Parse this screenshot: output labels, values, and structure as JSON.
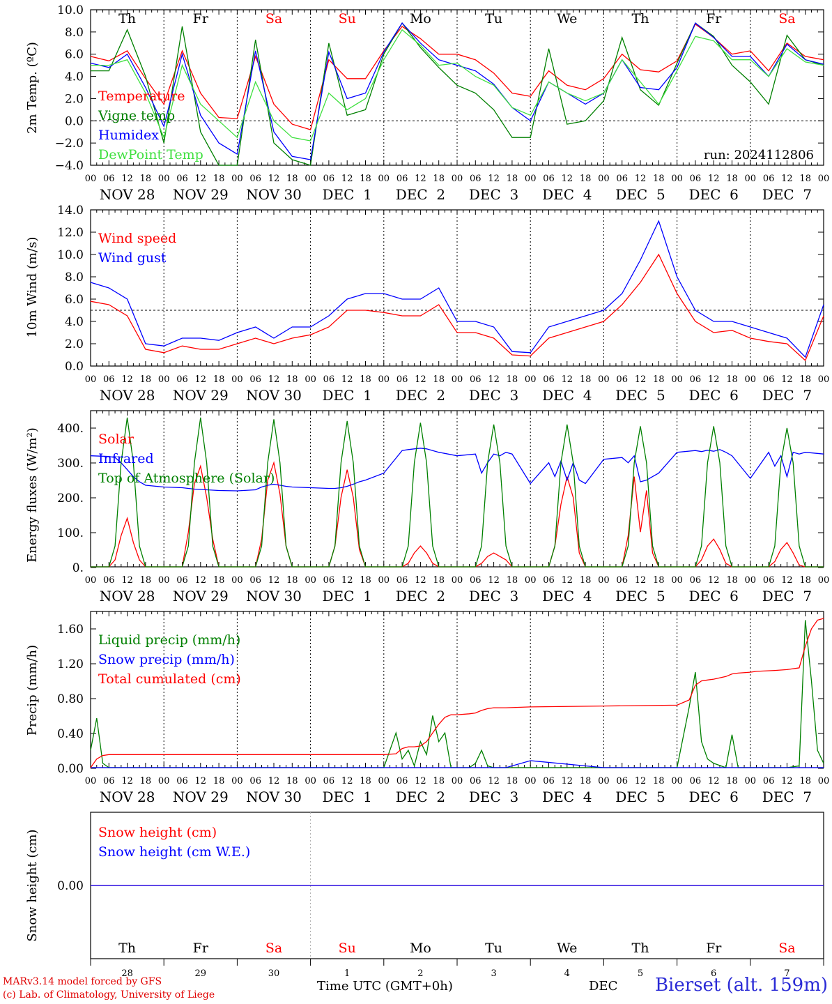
{
  "chart_data": [
    {
      "type": "line",
      "ylabel": "2m Temp. (ºC)",
      "ylim": [
        -4,
        10
      ],
      "yticks": [
        "10.0",
        "8.0",
        "6.0",
        "4.0",
        "2.0",
        "0.0",
        "−2.0",
        "−4.0"
      ],
      "reference_line": 0,
      "annotation": "run: 2024112806",
      "x": [
        0,
        6,
        12,
        18,
        24,
        30,
        36,
        42,
        48,
        54,
        60,
        66,
        72,
        78,
        84,
        90,
        96,
        102,
        108,
        114,
        120,
        126,
        132,
        138,
        144,
        150,
        156,
        162,
        168,
        174,
        180,
        186,
        192,
        198,
        204,
        210,
        216,
        222,
        228,
        234,
        240
      ],
      "series": [
        {
          "name": "Temperature",
          "color": "#ff0000",
          "values": [
            5.8,
            5.4,
            6.3,
            3.8,
            1.5,
            6.3,
            2.5,
            0.3,
            0.2,
            5.8,
            1.5,
            -0.3,
            -0.8,
            5.5,
            3.8,
            3.8,
            6.3,
            8.5,
            7.4,
            6.0,
            6.0,
            5.5,
            4.3,
            2.5,
            2.2,
            4.5,
            3.2,
            2.8,
            3.8,
            6.0,
            4.6,
            4.4,
            5.4,
            8.7,
            7.5,
            6.0,
            6.3,
            4.5,
            7.0,
            5.8,
            5.5
          ]
        },
        {
          "name": "Vigne temp",
          "color": "#008000",
          "values": [
            4.5,
            4.5,
            8.2,
            4.0,
            -2.0,
            8.5,
            -1.0,
            -4.0,
            -4.0,
            7.3,
            -2.0,
            -3.5,
            -4.0,
            7.0,
            0.5,
            1.0,
            6.0,
            8.8,
            6.6,
            4.8,
            3.2,
            2.5,
            1.0,
            -1.5,
            -1.5,
            6.5,
            -0.3,
            0.0,
            1.8,
            7.5,
            2.8,
            1.4,
            5.2,
            8.8,
            7.6,
            5.0,
            3.5,
            1.5,
            7.7,
            5.5,
            5.0
          ]
        },
        {
          "name": "Humidex",
          "color": "#0000ff",
          "values": [
            5.2,
            4.8,
            6.0,
            3.0,
            -0.5,
            6.0,
            0.5,
            -2.0,
            -3.0,
            6.3,
            -1.0,
            -3.2,
            -3.5,
            6.2,
            2.0,
            2.5,
            6.2,
            8.8,
            7.0,
            5.5,
            5.0,
            4.5,
            3.3,
            1.2,
            0.0,
            3.5,
            2.5,
            1.5,
            2.5,
            5.5,
            3.0,
            2.8,
            4.8,
            8.8,
            7.5,
            5.8,
            5.8,
            4.0,
            6.9,
            5.5,
            5.1
          ]
        },
        {
          "name": "DewPoint Temp",
          "color": "#40e040",
          "values": [
            5.0,
            5.0,
            5.5,
            2.5,
            -1.5,
            5.0,
            1.5,
            0.0,
            -1.5,
            3.5,
            0.0,
            -1.5,
            -1.8,
            2.5,
            1.0,
            2.0,
            5.5,
            8.2,
            6.8,
            5.0,
            5.2,
            4.0,
            3.2,
            1.2,
            0.5,
            3.5,
            2.5,
            1.8,
            2.5,
            5.5,
            3.5,
            1.5,
            4.5,
            7.6,
            7.2,
            5.5,
            5.5,
            4.0,
            6.5,
            5.3,
            5.0
          ]
        }
      ]
    },
    {
      "type": "line",
      "ylabel": "10m Wind (m/s)",
      "ylim": [
        0,
        14
      ],
      "yticks": [
        "14.0",
        "12.0",
        "10.0",
        "8.0",
        "6.0",
        "4.0",
        "2.0",
        "0.0"
      ],
      "reference_line": 5,
      "x": [
        0,
        6,
        12,
        18,
        24,
        30,
        36,
        42,
        48,
        54,
        60,
        66,
        72,
        78,
        84,
        90,
        96,
        102,
        108,
        114,
        120,
        126,
        132,
        138,
        144,
        150,
        156,
        162,
        168,
        174,
        180,
        186,
        192,
        198,
        204,
        210,
        216,
        222,
        228,
        234,
        240
      ],
      "series": [
        {
          "name": "Wind speed",
          "color": "#ff0000",
          "values": [
            5.8,
            5.5,
            4.5,
            1.5,
            1.2,
            1.8,
            1.5,
            1.5,
            2.0,
            2.5,
            2.0,
            2.5,
            2.8,
            3.5,
            5.0,
            5.0,
            4.8,
            4.5,
            4.5,
            5.5,
            3.0,
            3.0,
            2.5,
            1.0,
            0.9,
            2.5,
            3.0,
            3.5,
            4.0,
            5.5,
            7.5,
            10.0,
            6.5,
            4.0,
            3.0,
            3.2,
            2.5,
            2.2,
            2.0,
            0.5,
            4.5
          ]
        },
        {
          "name": "Wind gust",
          "color": "#0000ff",
          "values": [
            7.5,
            7.0,
            6.0,
            2.0,
            1.8,
            2.5,
            2.5,
            2.3,
            3.0,
            3.5,
            2.5,
            3.5,
            3.5,
            4.5,
            6.0,
            6.5,
            6.5,
            6.0,
            6.0,
            7.0,
            4.0,
            4.0,
            3.5,
            1.3,
            1.2,
            3.5,
            4.0,
            4.5,
            5.0,
            6.5,
            9.5,
            13.0,
            8.0,
            5.0,
            4.0,
            4.0,
            3.5,
            3.0,
            2.5,
            0.8,
            5.5
          ]
        }
      ]
    },
    {
      "type": "line",
      "ylabel": "Energy fluxes (W/m²)",
      "ylim": [
        0,
        450
      ],
      "yticks": [
        "400.",
        "300.",
        "200.",
        "100.",
        "0."
      ],
      "x": [
        0,
        6,
        8,
        10,
        12,
        14,
        16,
        18,
        24,
        30,
        32,
        34,
        36,
        38,
        40,
        42,
        48,
        54,
        56,
        58,
        60,
        62,
        64,
        66,
        72,
        78,
        80,
        82,
        84,
        86,
        88,
        90,
        96,
        102,
        104,
        106,
        108,
        110,
        112,
        114,
        120,
        126,
        128,
        130,
        132,
        134,
        136,
        138,
        144,
        150,
        152,
        154,
        156,
        158,
        160,
        162,
        168,
        174,
        176,
        178,
        180,
        182,
        184,
        186,
        192,
        198,
        200,
        202,
        204,
        206,
        208,
        210,
        216,
        222,
        224,
        226,
        228,
        230,
        232,
        234,
        240
      ],
      "series": [
        {
          "name": "Solar",
          "color": "#ff0000",
          "values": [
            0,
            0,
            20,
            90,
            140,
            70,
            20,
            0,
            0,
            0,
            100,
            240,
            290,
            200,
            80,
            0,
            0,
            0,
            80,
            250,
            300,
            210,
            60,
            0,
            0,
            0,
            60,
            200,
            280,
            200,
            50,
            0,
            0,
            0,
            10,
            40,
            60,
            40,
            10,
            0,
            0,
            0,
            10,
            30,
            40,
            30,
            20,
            0,
            0,
            0,
            60,
            180,
            260,
            200,
            40,
            0,
            0,
            0,
            90,
            260,
            100,
            220,
            40,
            0,
            0,
            0,
            20,
            60,
            80,
            50,
            10,
            0,
            0,
            0,
            15,
            50,
            70,
            40,
            5,
            0,
            0
          ]
        },
        {
          "name": "Infrared",
          "color": "#0000ff",
          "values": [
            320,
            318,
            315,
            300,
            280,
            260,
            245,
            235,
            230,
            228,
            226,
            224,
            223,
            222,
            221,
            220,
            219,
            222,
            230,
            235,
            238,
            235,
            232,
            230,
            228,
            226,
            226,
            228,
            232,
            238,
            245,
            250,
            270,
            335,
            338,
            340,
            342,
            340,
            335,
            330,
            320,
            325,
            270,
            300,
            325,
            320,
            330,
            325,
            240,
            300,
            260,
            305,
            250,
            300,
            250,
            240,
            310,
            315,
            300,
            320,
            245,
            250,
            260,
            270,
            330,
            335,
            332,
            336,
            333,
            338,
            330,
            320,
            255,
            330,
            290,
            320,
            260,
            330,
            325,
            330,
            325
          ]
        },
        {
          "name": "Top of Atmosphere (Solar)",
          "color": "#008000",
          "values": [
            0,
            0,
            60,
            300,
            430,
            300,
            60,
            0,
            0,
            0,
            60,
            300,
            430,
            300,
            60,
            0,
            0,
            0,
            60,
            300,
            425,
            300,
            60,
            0,
            0,
            0,
            60,
            300,
            420,
            300,
            60,
            0,
            0,
            0,
            60,
            300,
            415,
            300,
            60,
            0,
            0,
            0,
            60,
            300,
            410,
            300,
            60,
            0,
            0,
            0,
            60,
            300,
            410,
            300,
            60,
            0,
            0,
            0,
            60,
            300,
            405,
            300,
            60,
            0,
            0,
            0,
            60,
            300,
            405,
            300,
            60,
            0,
            0,
            0,
            60,
            300,
            400,
            300,
            60,
            0,
            0
          ]
        }
      ]
    },
    {
      "type": "line",
      "ylabel": "Precip (mm/h)",
      "ylim": [
        0,
        1.8
      ],
      "yticks": [
        "1.60",
        "1.20",
        "0.80",
        "0.40",
        "0.00"
      ],
      "x": [
        0,
        2,
        4,
        6,
        12,
        24,
        48,
        72,
        96,
        100,
        102,
        104,
        106,
        108,
        110,
        112,
        114,
        116,
        118,
        120,
        124,
        126,
        128,
        130,
        132,
        136,
        144,
        168,
        192,
        196,
        198,
        200,
        202,
        204,
        208,
        210,
        212,
        216,
        218,
        224,
        228,
        232,
        234,
        236,
        238,
        240
      ],
      "series": [
        {
          "name": "Liquid precip (mm/h)",
          "color": "#008000",
          "values": [
            0.2,
            0.57,
            0.05,
            0.0,
            0.0,
            0.0,
            0.0,
            0.0,
            0.0,
            0.4,
            0.1,
            0.2,
            0.02,
            0.3,
            0.15,
            0.6,
            0.3,
            0.4,
            0.0,
            0.0,
            0.0,
            0.05,
            0.2,
            0.02,
            0.0,
            0.0,
            0.0,
            0.0,
            0.0,
            0.7,
            1.1,
            0.3,
            0.1,
            0.05,
            0.0,
            0.38,
            0.0,
            0.0,
            0.0,
            0.0,
            0.0,
            0.02,
            1.7,
            1.0,
            0.2,
            0.05
          ]
        },
        {
          "name": "Snow precip (mm/h)",
          "color": "#0000ff",
          "values": [
            0,
            0,
            0,
            0,
            0,
            0,
            0,
            0,
            0,
            0,
            0,
            0,
            0,
            0,
            0,
            0,
            0,
            0,
            0,
            0,
            0,
            0,
            0,
            0,
            0,
            0,
            0.08,
            0,
            0,
            0,
            0,
            0,
            0,
            0,
            0,
            0,
            0,
            0,
            0,
            0,
            0,
            0,
            0,
            0,
            0,
            0
          ]
        },
        {
          "name": "Total cumulated (cm)",
          "color": "#ff0000",
          "values": [
            0.0,
            0.1,
            0.14,
            0.15,
            0.15,
            0.15,
            0.15,
            0.15,
            0.15,
            0.16,
            0.22,
            0.24,
            0.24,
            0.25,
            0.3,
            0.4,
            0.5,
            0.58,
            0.61,
            0.61,
            0.62,
            0.63,
            0.66,
            0.68,
            0.69,
            0.69,
            0.7,
            0.71,
            0.72,
            0.78,
            0.95,
            1.0,
            1.01,
            1.02,
            1.05,
            1.08,
            1.09,
            1.1,
            1.11,
            1.12,
            1.13,
            1.15,
            1.4,
            1.6,
            1.7,
            1.72
          ]
        }
      ]
    },
    {
      "type": "line",
      "ylabel": "Snow height (cm)",
      "yticks": [
        "0.00"
      ],
      "x": [
        0,
        240
      ],
      "series": [
        {
          "name": "Snow height (cm)",
          "color": "#ff0000",
          "values": [
            0,
            0
          ]
        },
        {
          "name": "Snow height (cm W.E.)",
          "color": "#0000ff",
          "values": [
            0,
            0
          ]
        }
      ]
    }
  ],
  "xaxis": {
    "hour_ticks": [
      "00",
      "06",
      "12",
      "18"
    ],
    "final_tick": "00",
    "date_labels": [
      "NOV 28",
      "NOV 29",
      "NOV 30",
      "DEC  1",
      "DEC  2",
      "DEC  3",
      "DEC  4",
      "DEC  5",
      "DEC  6",
      "DEC  7"
    ],
    "day_numbers": [
      "28",
      "29",
      "30",
      "1",
      "2",
      "3",
      "4",
      "5",
      "6",
      "7"
    ],
    "weekdays": [
      "Th",
      "Fr",
      "Sa",
      "Su",
      "Mo",
      "Tu",
      "We",
      "Th",
      "Fr",
      "Sa"
    ],
    "weekend": [
      false,
      false,
      true,
      true,
      false,
      false,
      false,
      false,
      false,
      true
    ],
    "weekend_color": "#ff0000"
  },
  "footer": {
    "credit1": "MARv3.14 model forced by GFS",
    "credit2": "(c) Lab. of Climatology, University of Liege",
    "axis_title": "Time UTC (GMT+0h)",
    "month": "DEC",
    "station": "Bierset (alt. 159m)"
  }
}
